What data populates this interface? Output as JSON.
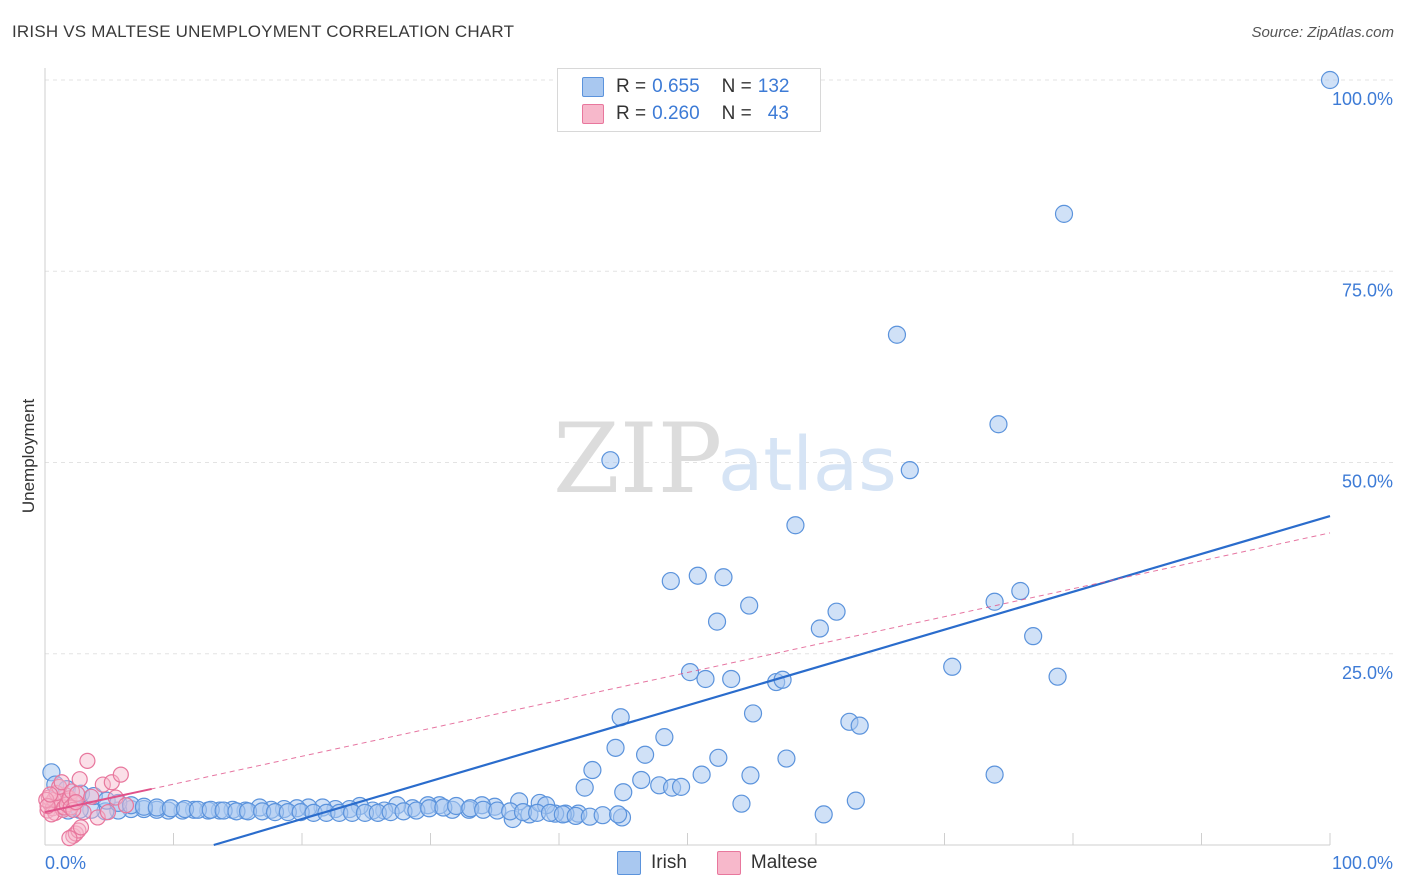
{
  "title": "IRISH VS MALTESE UNEMPLOYMENT CORRELATION CHART",
  "source": "Source: ZipAtlas.com",
  "watermark": {
    "zip": "ZIP",
    "atlas": "atlas"
  },
  "legend": {
    "rows": [
      {
        "r_label": "R =",
        "r_value": "0.655",
        "n_label": "N =",
        "n_value": "132"
      },
      {
        "r_label": "R =",
        "r_value": "0.260",
        "n_label": "N =",
        "n_value": "43"
      }
    ]
  },
  "bottom_legend": [
    "Irish",
    "Maltese"
  ],
  "colors": {
    "irish_fill": "#a9c8f0",
    "irish_stroke": "#5b93dc",
    "irish_line": "#2a6ccc",
    "maltese_fill": "#f7b8cb",
    "maltese_stroke": "#e8779d",
    "maltese_line": "#e0528a",
    "grid": "#e3e3e3",
    "tick_text": "#3d7bd6"
  },
  "chart_data": {
    "type": "scatter",
    "title": "IRISH VS MALTESE UNEMPLOYMENT CORRELATION CHART",
    "xlabel": "",
    "ylabel": "Unemployment",
    "xlim": [
      0,
      100
    ],
    "ylim": [
      0,
      100
    ],
    "x_tick_labels": [
      "0.0%",
      "100.0%"
    ],
    "y_tick_labels": [
      "25.0%",
      "50.0%",
      "75.0%",
      "100.0%"
    ],
    "y_ticks": [
      25,
      50,
      75,
      100
    ],
    "x_minor_ticks": [
      0,
      10,
      20,
      30,
      40,
      50,
      60,
      70,
      80,
      90,
      100
    ],
    "series": [
      {
        "name": "Irish",
        "r": 0.655,
        "n": 132,
        "trend": {
          "x": [
            0,
            100
          ],
          "y": [
            -6.5,
            43
          ]
        },
        "points": [
          [
            100,
            100
          ],
          [
            79.3,
            82.5
          ],
          [
            66.3,
            66.7
          ],
          [
            74.2,
            55
          ],
          [
            67.3,
            49
          ],
          [
            44,
            50.3
          ],
          [
            58.4,
            41.8
          ],
          [
            50.8,
            35.2
          ],
          [
            48.7,
            34.5
          ],
          [
            52.8,
            35
          ],
          [
            75.9,
            33.2
          ],
          [
            54.8,
            31.3
          ],
          [
            61.6,
            30.5
          ],
          [
            73.9,
            31.8
          ],
          [
            52.3,
            29.2
          ],
          [
            60.3,
            28.3
          ],
          [
            76.9,
            27.3
          ],
          [
            50.2,
            22.6
          ],
          [
            70.6,
            23.3
          ],
          [
            78.8,
            22
          ],
          [
            51.4,
            21.7
          ],
          [
            53.4,
            21.7
          ],
          [
            56.9,
            21.3
          ],
          [
            57.4,
            21.6
          ],
          [
            55.1,
            17.2
          ],
          [
            44.8,
            16.7
          ],
          [
            62.6,
            16.1
          ],
          [
            63.4,
            15.6
          ],
          [
            44.4,
            12.7
          ],
          [
            46.7,
            11.8
          ],
          [
            48.2,
            14.1
          ],
          [
            52.4,
            11.4
          ],
          [
            57.7,
            11.3
          ],
          [
            42.6,
            9.8
          ],
          [
            51.1,
            9.2
          ],
          [
            54.9,
            9.1
          ],
          [
            73.9,
            9.2
          ],
          [
            46.4,
            8.5
          ],
          [
            47.8,
            7.8
          ],
          [
            48.8,
            7.5
          ],
          [
            49.5,
            7.6
          ],
          [
            45,
            6.9
          ],
          [
            42,
            7.5
          ],
          [
            54.2,
            5.4
          ],
          [
            63.1,
            5.8
          ],
          [
            44.9,
            3.6
          ],
          [
            60.6,
            4
          ],
          [
            41.5,
            4.1
          ],
          [
            40.5,
            4.1
          ],
          [
            39.7,
            4.1
          ],
          [
            36.4,
            3.4
          ],
          [
            37.7,
            4
          ],
          [
            36.9,
            5.7
          ],
          [
            38.5,
            5.5
          ],
          [
            39,
            5.2
          ],
          [
            35,
            5
          ],
          [
            34,
            5.2
          ],
          [
            33,
            4.6
          ],
          [
            31.7,
            4.6
          ],
          [
            30.7,
            5.2
          ],
          [
            29.8,
            5.2
          ],
          [
            28.6,
            4.8
          ],
          [
            27.4,
            5.2
          ],
          [
            26.4,
            4.5
          ],
          [
            25.5,
            4.5
          ],
          [
            24.5,
            5.1
          ],
          [
            23.7,
            4.7
          ],
          [
            22.6,
            4.7
          ],
          [
            21.6,
            4.9
          ],
          [
            20.5,
            4.9
          ],
          [
            19.6,
            4.8
          ],
          [
            18.6,
            4.7
          ],
          [
            17.6,
            4.6
          ],
          [
            16.7,
            4.9
          ],
          [
            15.6,
            4.5
          ],
          [
            14.6,
            4.6
          ],
          [
            13.6,
            4.5
          ],
          [
            12.7,
            4.5
          ],
          [
            11.6,
            4.6
          ],
          [
            10.7,
            4.5
          ],
          [
            9.6,
            4.5
          ],
          [
            8.7,
            4.6
          ],
          [
            7.7,
            4.7
          ],
          [
            6.7,
            4.7
          ],
          [
            5.7,
            4.5
          ],
          [
            4.7,
            4.4
          ],
          [
            3.6,
            4.6
          ],
          [
            2.7,
            4.6
          ],
          [
            1.8,
            4.5
          ],
          [
            0.5,
            9.5
          ],
          [
            0.8,
            7.9
          ],
          [
            1.7,
            7.3
          ],
          [
            2.8,
            6.7
          ],
          [
            3.8,
            6.4
          ],
          [
            4.8,
            5.8
          ],
          [
            5.7,
            5.5
          ],
          [
            6.7,
            5.2
          ],
          [
            7.7,
            5
          ],
          [
            8.7,
            4.9
          ],
          [
            9.8,
            4.8
          ],
          [
            10.9,
            4.7
          ],
          [
            11.9,
            4.6
          ],
          [
            12.9,
            4.6
          ],
          [
            13.9,
            4.5
          ],
          [
            14.9,
            4.4
          ],
          [
            15.8,
            4.4
          ],
          [
            16.9,
            4.4
          ],
          [
            17.9,
            4.3
          ],
          [
            18.9,
            4.3
          ],
          [
            19.9,
            4.3
          ],
          [
            20.9,
            4.2
          ],
          [
            21.9,
            4.2
          ],
          [
            22.9,
            4.2
          ],
          [
            23.9,
            4.2
          ],
          [
            24.9,
            4.2
          ],
          [
            25.9,
            4.2
          ],
          [
            26.9,
            4.3
          ],
          [
            27.9,
            4.4
          ],
          [
            28.9,
            4.5
          ],
          [
            29.9,
            4.8
          ],
          [
            31,
            4.9
          ],
          [
            32,
            5.1
          ],
          [
            33.1,
            4.8
          ],
          [
            34.1,
            4.6
          ],
          [
            35.2,
            4.5
          ],
          [
            36.2,
            4.4
          ],
          [
            37.2,
            4.3
          ],
          [
            38.3,
            4.2
          ],
          [
            39.3,
            4.2
          ],
          [
            40.3,
            4
          ],
          [
            41.3,
            3.8
          ],
          [
            42.4,
            3.7
          ],
          [
            43.4,
            3.9
          ],
          [
            44.6,
            4
          ]
        ]
      },
      {
        "name": "Maltese",
        "r": 0.26,
        "n": 43,
        "trend": {
          "x": [
            0,
            100
          ],
          "y": [
            4.3,
            40.8
          ]
        },
        "points": [
          [
            0.2,
            4.5
          ],
          [
            0.4,
            5.4
          ],
          [
            0.6,
            4.8
          ],
          [
            0.8,
            4.2
          ],
          [
            1,
            5.6
          ],
          [
            1.2,
            5.1
          ],
          [
            1.4,
            4.6
          ],
          [
            1.6,
            6.5
          ],
          [
            1.8,
            5.8
          ],
          [
            0.3,
            6.2
          ],
          [
            0.5,
            4
          ],
          [
            0.7,
            5.9
          ],
          [
            0.9,
            6.8
          ],
          [
            1.1,
            7.6
          ],
          [
            1.3,
            8.2
          ],
          [
            1.5,
            4.9
          ],
          [
            1.7,
            5.3
          ],
          [
            1.9,
            6.1
          ],
          [
            2.1,
            7
          ],
          [
            2.3,
            5.5
          ],
          [
            2.5,
            6.7
          ],
          [
            2.7,
            8.6
          ],
          [
            3,
            4.3
          ],
          [
            3.3,
            11
          ],
          [
            3.6,
            6.3
          ],
          [
            4.1,
            3.6
          ],
          [
            4.5,
            7.9
          ],
          [
            4.9,
            4.3
          ],
          [
            5.2,
            8.2
          ],
          [
            5.5,
            6.2
          ],
          [
            5.9,
            9.2
          ],
          [
            6.3,
            5.2
          ],
          [
            2.2,
            1.2
          ],
          [
            2.4,
            1.5
          ],
          [
            2.6,
            1.9
          ],
          [
            2.8,
            2.3
          ],
          [
            1.9,
            0.9
          ],
          [
            2,
            4.9
          ],
          [
            2.2,
            4.6
          ],
          [
            2.4,
            5.6
          ],
          [
            0.1,
            5.9
          ],
          [
            0.2,
            5.1
          ],
          [
            0.4,
            6.6
          ]
        ]
      }
    ]
  }
}
